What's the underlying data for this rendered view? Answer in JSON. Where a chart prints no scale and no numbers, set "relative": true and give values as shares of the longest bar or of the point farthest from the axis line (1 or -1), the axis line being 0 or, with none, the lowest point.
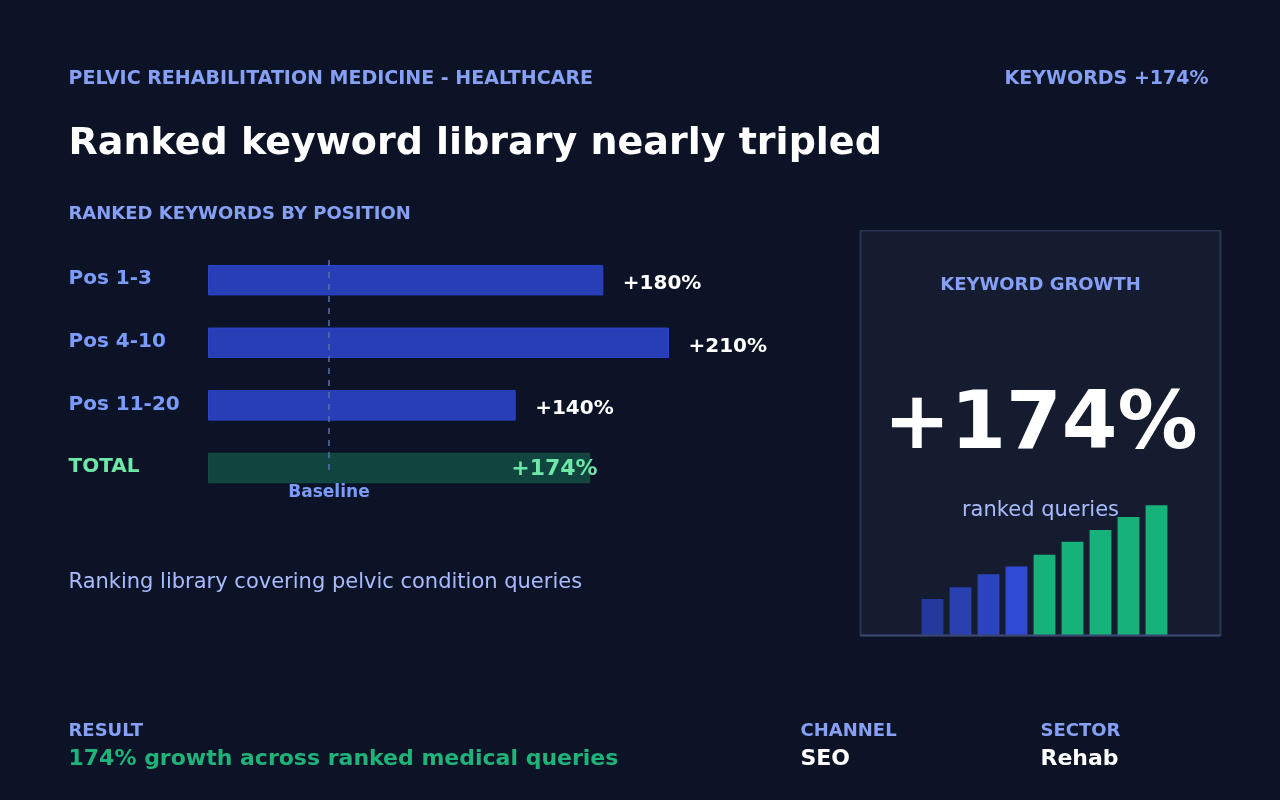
{
  "chart_data": [
    {
      "type": "bar",
      "orientation": "horizontal",
      "title": "Ranked keyword library nearly tripled",
      "subtitle": "RANKED KEYWORDS BY POSITION",
      "categories": [
        "Pos 1-3",
        "Pos 4-10",
        "Pos 11-20",
        "TOTAL"
      ],
      "values": [
        180,
        210,
        140,
        174
      ],
      "colors": [
        "#2a44c8",
        "#2a44c8",
        "#2a44c8",
        "#124d44"
      ],
      "value_labels": [
        "+180%",
        "+210%",
        "+140%",
        "+174%"
      ],
      "ref_lines": [
        {
          "axis": "x",
          "value": 55,
          "label": "Baseline",
          "color": "#5b6fb0",
          "line_style": "dashed"
        }
      ],
      "tick_labels": false,
      "grid": false,
      "annotations": [
        "PELVIC REHABILITATION MEDICINE - HEALTHCARE",
        "KEYWORDS +174%",
        "Ranking library covering pelvic condition queries",
        "RESULT",
        "174% growth across ranked medical queries",
        "CHANNEL",
        "SEO",
        "SECTOR",
        "Rehab"
      ]
    },
    {
      "type": "bar",
      "relative": true,
      "title": "KEYWORD GROWTH",
      "categories": [
        null,
        null,
        null,
        null,
        null,
        null,
        null,
        null,
        null
      ],
      "values": [
        0.28,
        0.37,
        0.47,
        0.53,
        0.62,
        0.72,
        0.81,
        0.91,
        1
      ],
      "colors": [
        "#233a9c",
        "#2840b0",
        "#2b44c0",
        "#2f4bd6",
        "#16b27a",
        "#16b27a",
        "#16b27a",
        "#16b27a",
        "#16b27a"
      ],
      "tick_labels": false,
      "grid": false,
      "annotations": [
        "+174%",
        "ranked queries"
      ]
    }
  ]
}
